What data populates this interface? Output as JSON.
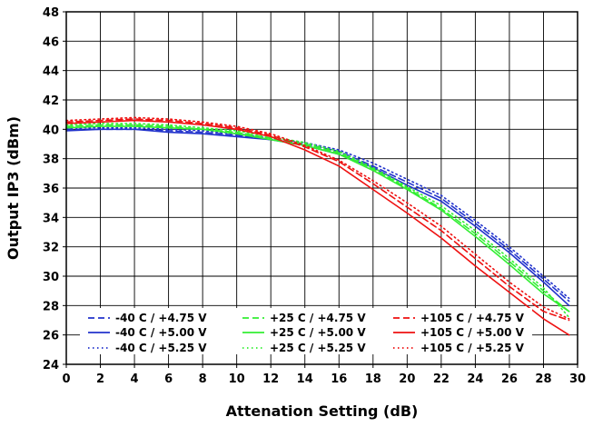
{
  "chart_data": {
    "type": "line",
    "title": "",
    "xlabel": "Attenation Setting (dB)",
    "ylabel": "Output  IP3 (dBm)",
    "xlim": [
      0,
      30
    ],
    "ylim": [
      24,
      48
    ],
    "x_ticks": [
      "0",
      "2",
      "4",
      "6",
      "8",
      "10",
      "12",
      "14",
      "16",
      "18",
      "20",
      "22",
      "24",
      "26",
      "28",
      "30"
    ],
    "y_ticks": [
      "24",
      "26",
      "28",
      "30",
      "32",
      "34",
      "36",
      "38",
      "40",
      "42",
      "44",
      "46",
      "48"
    ],
    "grid": true,
    "legend_position": "bottom-left",
    "colors": {
      "cold": "#2233cc",
      "room": "#33ee33",
      "hot": "#ee1111"
    },
    "x": [
      0,
      2,
      4,
      6,
      8,
      10,
      12,
      14,
      16,
      18,
      20,
      22,
      24,
      26,
      28,
      29.5
    ],
    "series": [
      {
        "name": "-40 C /  +4.75 V",
        "color": "#2233cc",
        "dash": "dash",
        "values": [
          40.0,
          40.0,
          40.0,
          39.9,
          39.8,
          39.6,
          39.3,
          39.0,
          38.5,
          37.5,
          36.4,
          35.3,
          33.6,
          31.8,
          29.8,
          28.3
        ]
      },
      {
        "name": "-40 C /  +5.00 V",
        "color": "#2233cc",
        "dash": "solid",
        "values": [
          39.9,
          40.0,
          40.0,
          39.8,
          39.7,
          39.5,
          39.3,
          38.9,
          38.3,
          37.4,
          36.2,
          35.1,
          33.4,
          31.6,
          29.6,
          28.0
        ]
      },
      {
        "name": "-40 C /  +5.25 V",
        "color": "#2233cc",
        "dash": "dot",
        "values": [
          40.1,
          40.1,
          40.1,
          40.0,
          39.9,
          39.7,
          39.4,
          39.1,
          38.6,
          37.7,
          36.6,
          35.5,
          33.8,
          32.0,
          30.0,
          28.5
        ]
      },
      {
        "name": "+25 C /  +4.75 V",
        "color": "#33ee33",
        "dash": "dash",
        "values": [
          40.2,
          40.3,
          40.3,
          40.2,
          40.0,
          39.8,
          39.4,
          39.0,
          38.4,
          37.3,
          36.0,
          34.6,
          32.9,
          31.0,
          29.0,
          27.6
        ]
      },
      {
        "name": "+25 C /  +5.00 V",
        "color": "#33ee33",
        "dash": "solid",
        "values": [
          40.1,
          40.2,
          40.2,
          40.1,
          40.0,
          39.7,
          39.3,
          38.9,
          38.3,
          37.2,
          35.9,
          34.5,
          32.7,
          30.8,
          28.8,
          27.6
        ]
      },
      {
        "name": "+25 C /  +5.25 V",
        "color": "#33ee33",
        "dash": "dot",
        "values": [
          40.3,
          40.4,
          40.4,
          40.3,
          40.1,
          39.9,
          39.5,
          39.1,
          38.5,
          37.4,
          36.1,
          34.8,
          33.1,
          31.2,
          29.2,
          27.2
        ]
      },
      {
        "name": "+105 C /  +4.75 V",
        "color": "#ee1111",
        "dash": "dash",
        "values": [
          40.5,
          40.6,
          40.7,
          40.6,
          40.4,
          40.1,
          39.6,
          38.8,
          37.8,
          36.3,
          34.7,
          33.1,
          31.2,
          29.3,
          27.6,
          27.0
        ]
      },
      {
        "name": "+105 C /  +5.00 V",
        "color": "#ee1111",
        "dash": "solid",
        "values": [
          40.4,
          40.5,
          40.6,
          40.5,
          40.3,
          40.0,
          39.5,
          38.6,
          37.5,
          35.9,
          34.3,
          32.6,
          30.7,
          28.9,
          27.1,
          26.0
        ]
      },
      {
        "name": "+105 C /  +5.25 V",
        "color": "#ee1111",
        "dash": "dot",
        "values": [
          40.6,
          40.7,
          40.8,
          40.7,
          40.5,
          40.2,
          39.7,
          38.9,
          37.9,
          36.5,
          35.0,
          33.4,
          31.5,
          29.6,
          27.9,
          27.1
        ]
      }
    ]
  }
}
